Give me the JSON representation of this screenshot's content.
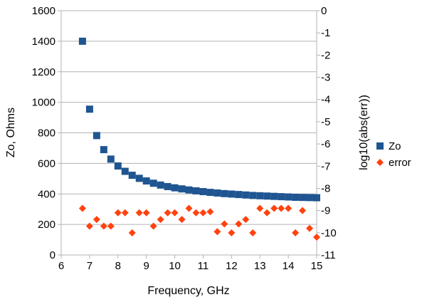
{
  "chart_data": {
    "type": "scatter",
    "xlabel": "Frequency, GHz",
    "ylabel": "Zo, Ohms",
    "y2label": "log10(abs(err))",
    "xlim": [
      6,
      15
    ],
    "ylim": [
      0,
      1600
    ],
    "y2lim": [
      -11,
      0
    ],
    "xticks": [
      "6",
      "7",
      "8",
      "9",
      "10",
      "11",
      "12",
      "13",
      "14",
      "15"
    ],
    "yticks": [
      "0",
      "200",
      "400",
      "600",
      "800",
      "1000",
      "1200",
      "1400",
      "1600"
    ],
    "y2ticks": [
      "0",
      "-1",
      "-2",
      "-3",
      "-4",
      "-5",
      "-6",
      "-7",
      "-8",
      "-9",
      "-10",
      "-11"
    ],
    "grid": "horizontal major, left axis",
    "legend": "right",
    "series": [
      {
        "name": "Zo",
        "axis": "left",
        "marker": "square",
        "color": "#1f5591",
        "x": [
          6.75,
          7.0,
          7.25,
          7.5,
          7.75,
          8.0,
          8.25,
          8.5,
          8.75,
          9.0,
          9.25,
          9.5,
          9.75,
          10.0,
          10.25,
          10.5,
          10.75,
          11.0,
          11.25,
          11.5,
          11.75,
          12.0,
          12.25,
          12.5,
          12.75,
          13.0,
          13.25,
          13.5,
          13.75,
          14.0,
          14.25,
          14.5,
          14.75,
          15.0
        ],
        "y": [
          1400,
          955,
          782,
          690,
          628,
          583,
          548,
          522,
          502,
          485,
          470,
          458,
          448,
          440,
          433,
          426,
          420,
          415,
          410,
          406,
          402,
          399,
          396,
          393,
          390,
          388,
          386,
          384,
          382,
          380,
          378,
          377,
          376,
          375
        ]
      },
      {
        "name": "error",
        "axis": "right",
        "marker": "diamond",
        "color": "#ff420e",
        "x": [
          6.75,
          7.0,
          7.25,
          7.5,
          7.75,
          8.0,
          8.25,
          8.5,
          8.75,
          9.0,
          9.25,
          9.5,
          9.75,
          10.0,
          10.25,
          10.5,
          10.75,
          11.0,
          11.25,
          11.5,
          11.75,
          12.0,
          12.25,
          12.5,
          12.75,
          13.0,
          13.25,
          13.5,
          13.75,
          14.0,
          14.25,
          14.5,
          14.75,
          15.0
        ],
        "y": [
          -8.9,
          -9.7,
          -9.4,
          -9.7,
          -9.7,
          -9.1,
          -9.1,
          -10.0,
          -9.1,
          -9.1,
          -9.7,
          -9.4,
          -9.1,
          -9.1,
          -9.4,
          -8.9,
          -9.1,
          -9.1,
          -9.05,
          -9.95,
          -9.6,
          -10.0,
          -9.6,
          -9.4,
          -10.0,
          -8.9,
          -9.1,
          -8.9,
          -8.9,
          -8.9,
          -10.0,
          -9.0,
          -9.8,
          -10.2
        ]
      }
    ]
  }
}
